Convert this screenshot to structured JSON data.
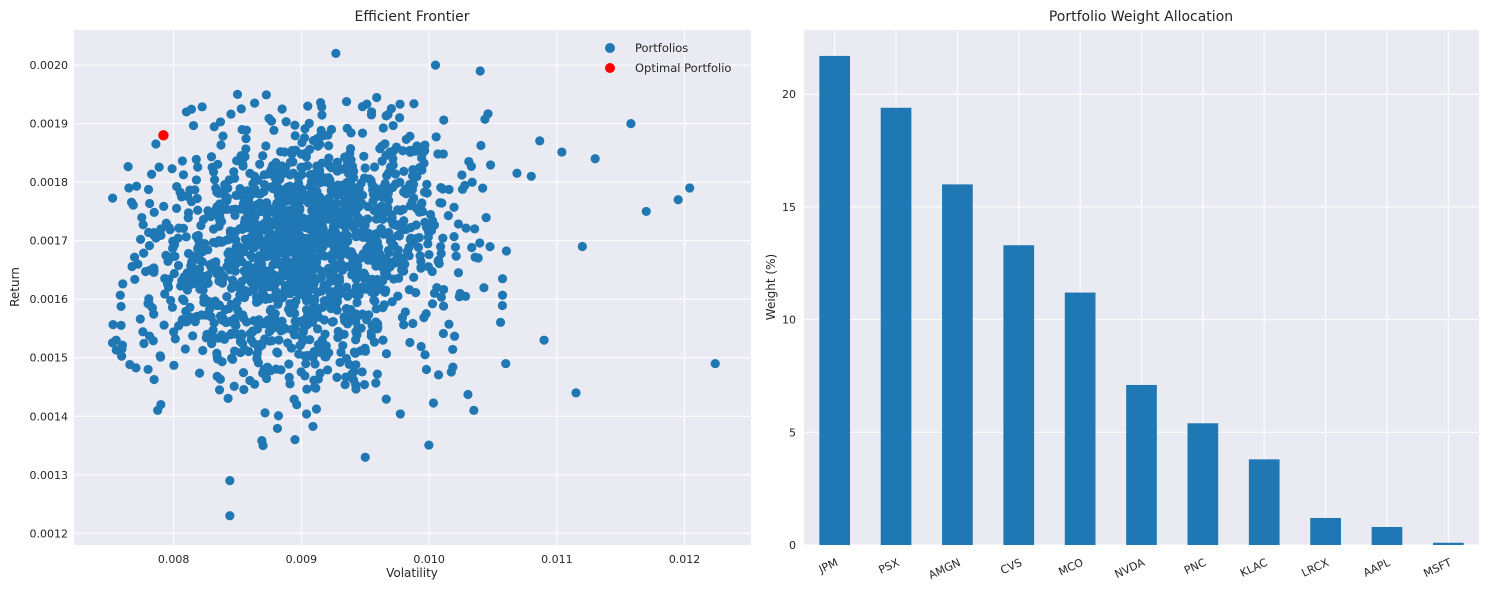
{
  "chart_data": [
    {
      "type": "scatter",
      "title": "Efficient Frontier",
      "xlabel": "Volatility",
      "ylabel": "Return",
      "xlim": [
        0.00722,
        0.01252
      ],
      "ylim": [
        0.00118,
        0.00206
      ],
      "xticks": [
        "0.008",
        "0.009",
        "0.010",
        "0.011",
        "0.012"
      ],
      "yticks": [
        "0.0012",
        "0.0013",
        "0.0014",
        "0.0015",
        "0.0016",
        "0.0017",
        "0.0018",
        "0.0019",
        "0.0020"
      ],
      "grid": true,
      "legend": {
        "placement": "top-right",
        "entries": [
          "Portfolios",
          "Optimal Portfolio"
        ]
      },
      "colors": {
        "Portfolios": "#1f77b4",
        "Optimal Portfolio": "#ff0000",
        "background": "#eaeaf2",
        "grid": "#ffffff"
      },
      "series": [
        {
          "name": "Portfolios",
          "cluster_center": [
            0.009,
            0.00168
          ],
          "count_approx": 2000,
          "points": [
            [
              0.00755,
              0.00153
            ],
            [
              0.00765,
              0.00179
            ],
            [
              0.00772,
              0.00166
            ],
            [
              0.0078,
              0.00148
            ],
            [
              0.0079,
              0.00142
            ],
            [
              0.00844,
              0.00129
            ],
            [
              0.00844,
              0.00123
            ],
            [
              0.00895,
              0.00136
            ],
            [
              0.00927,
              0.00202
            ],
            [
              0.0095,
              0.00133
            ],
            [
              0.01005,
              0.002
            ],
            [
              0.0104,
              0.00199
            ],
            [
              0.01115,
              0.00144
            ],
            [
              0.01158,
              0.0019
            ],
            [
              0.0117,
              0.00175
            ],
            [
              0.01195,
              0.00177
            ],
            [
              0.01204,
              0.00179
            ],
            [
              0.01224,
              0.00149
            ],
            [
              0.0109,
              0.00153
            ],
            [
              0.01035,
              0.00141
            ],
            [
              0.0085,
              0.00195
            ],
            [
              0.0081,
              0.00192
            ],
            [
              0.0087,
              0.00135
            ],
            [
              0.0079,
              0.00172
            ],
            [
              0.0113,
              0.00184
            ],
            [
              0.0112,
              0.00169
            ],
            [
              0.0108,
              0.00181
            ],
            [
              0.0106,
              0.00149
            ],
            [
              0.00905,
              0.00193
            ],
            [
              0.00955,
              0.00192
            ]
          ]
        },
        {
          "name": "Optimal Portfolio",
          "points": [
            [
              0.00792,
              0.00188
            ]
          ]
        }
      ]
    },
    {
      "type": "bar",
      "title": "Portfolio Weight Allocation",
      "xlabel": "",
      "ylabel": "Weight (%)",
      "ylim": [
        0,
        22.85
      ],
      "yticks": [
        "0",
        "5",
        "10",
        "15",
        "20"
      ],
      "grid": true,
      "color": "#1f77b4",
      "categories": [
        "JPM",
        "PSX",
        "AMGN",
        "CVS",
        "MCO",
        "NVDA",
        "PNC",
        "KLAC",
        "LRCX",
        "AAPL",
        "MSFT"
      ],
      "values": [
        21.7,
        19.4,
        16.0,
        13.3,
        11.2,
        7.1,
        5.4,
        3.8,
        1.2,
        0.8,
        0.1
      ]
    }
  ]
}
